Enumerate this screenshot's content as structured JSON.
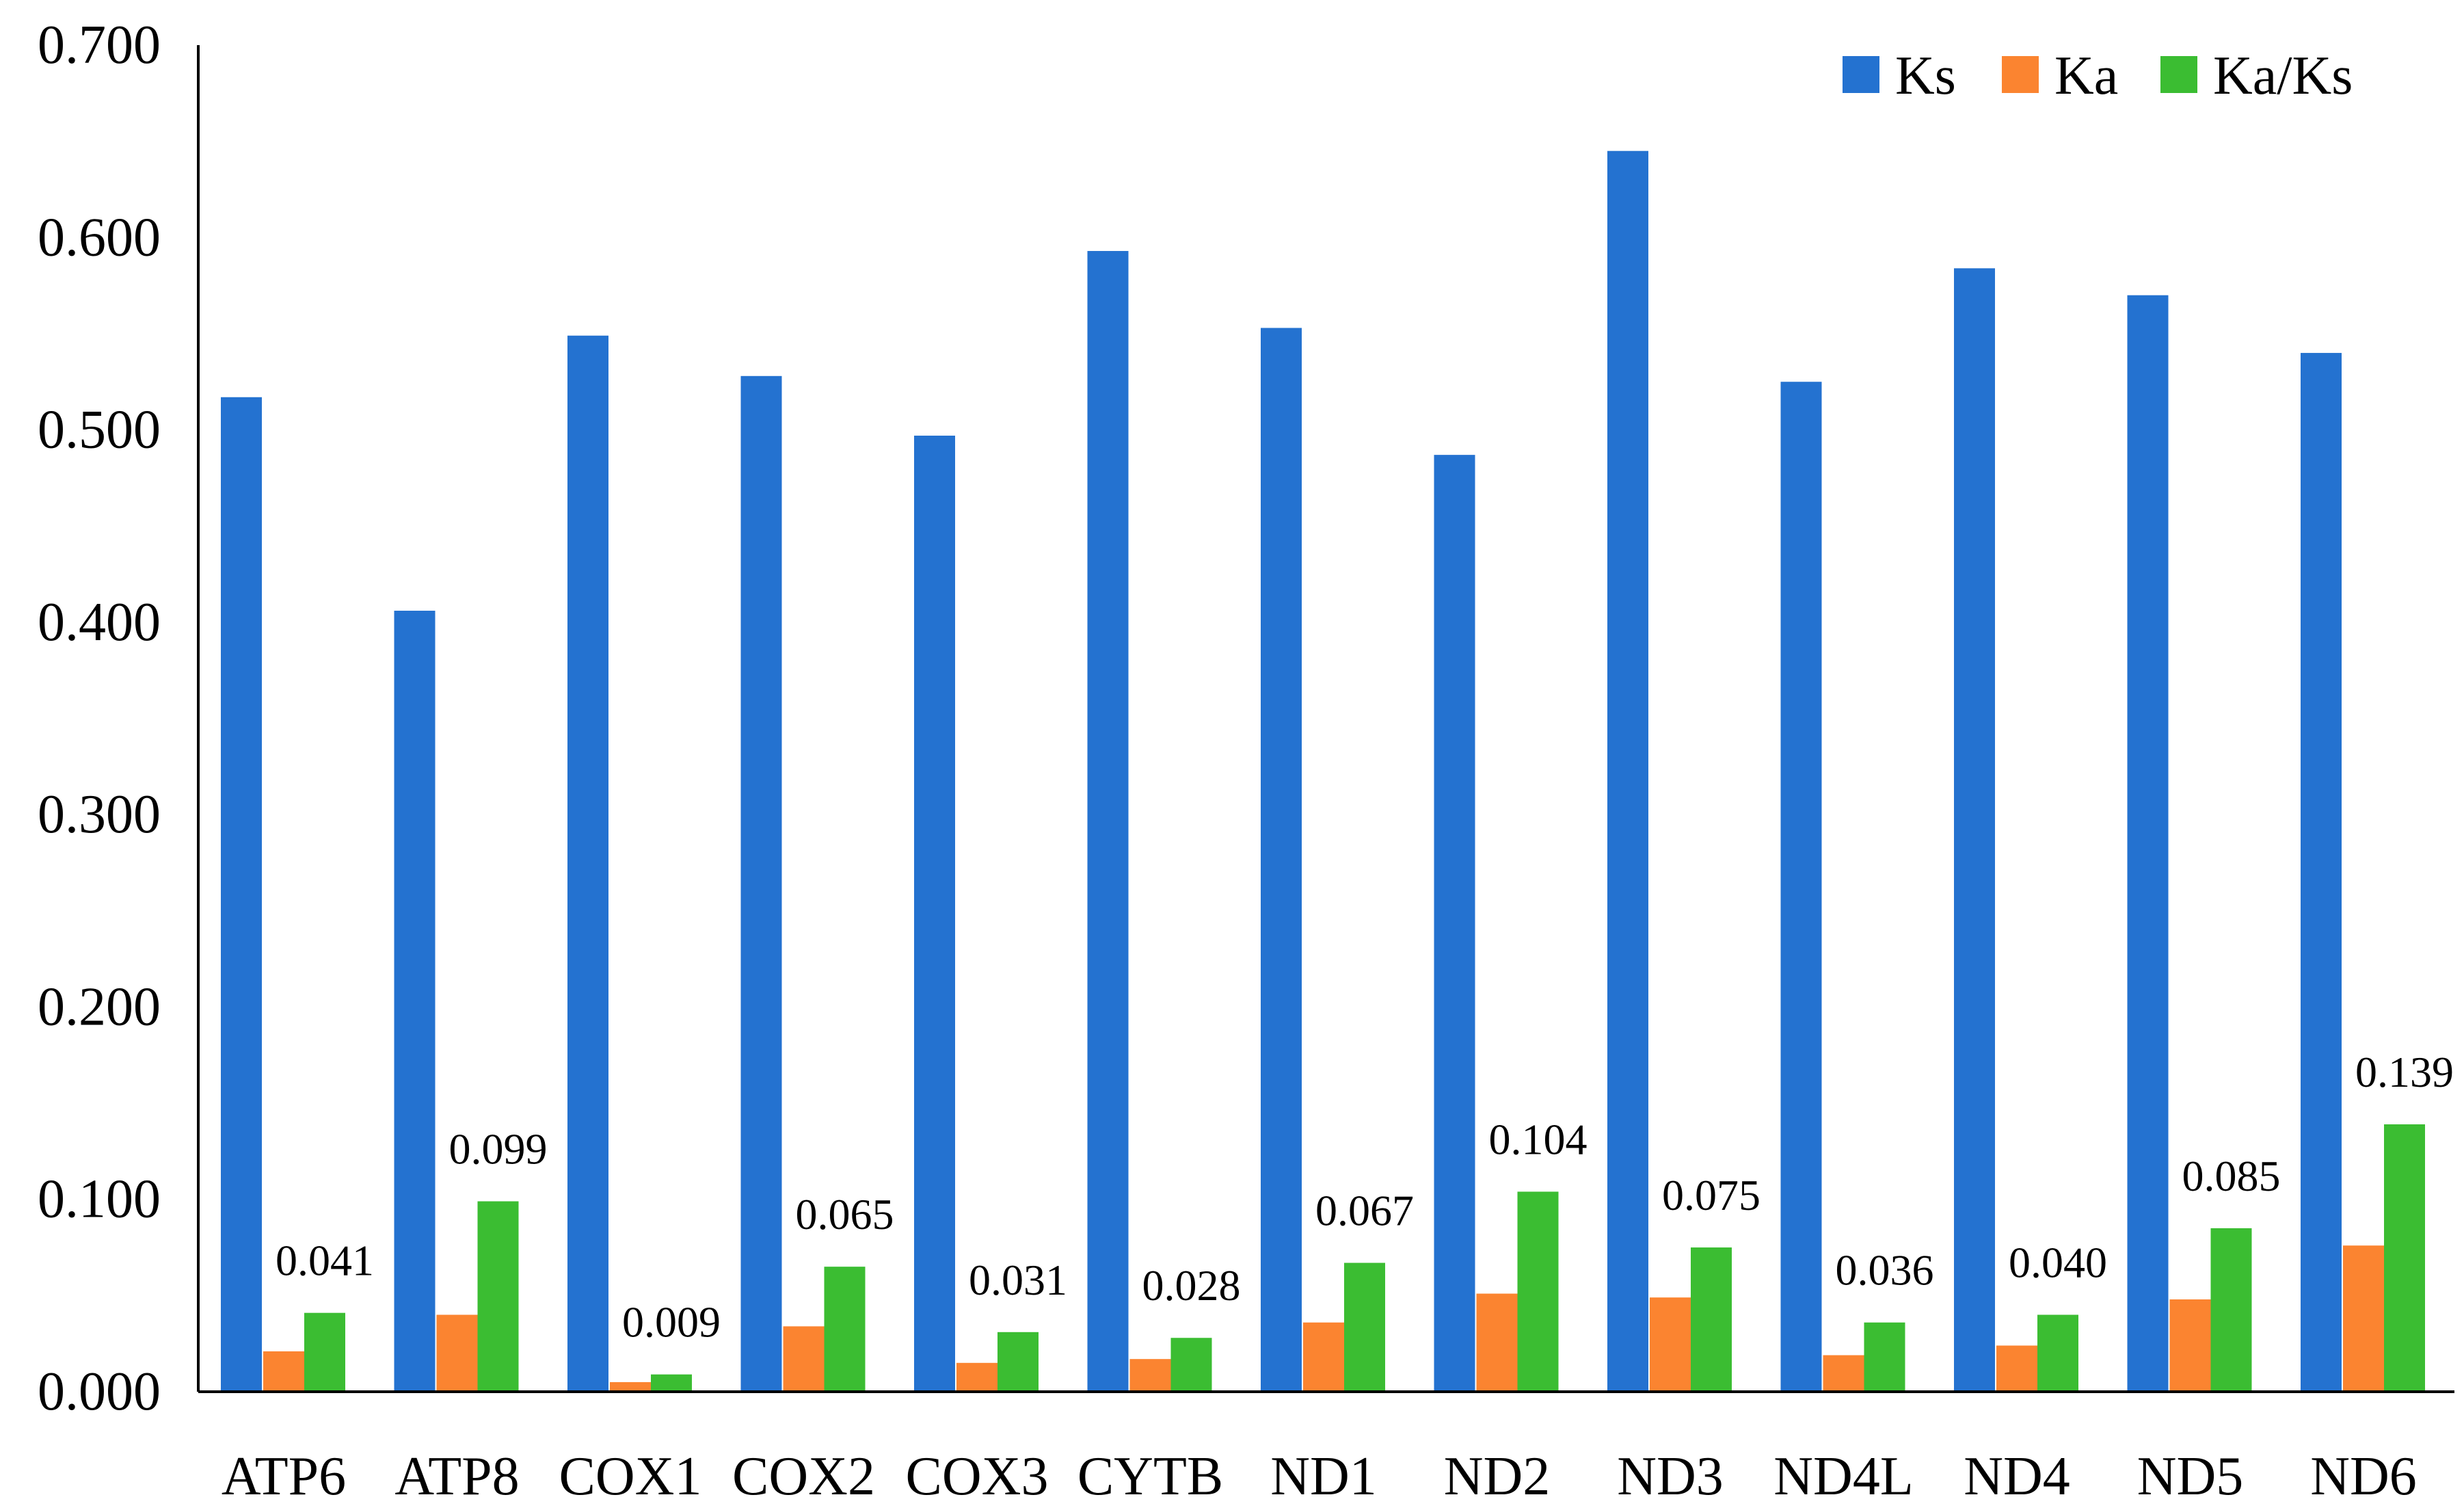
{
  "chart_data": {
    "type": "bar",
    "title": "",
    "xlabel": "",
    "ylabel": "",
    "ylim": [
      0,
      0.7
    ],
    "yticks": [
      "0.000",
      "0.100",
      "0.200",
      "0.300",
      "0.400",
      "0.500",
      "0.600",
      "0.700"
    ],
    "ytick_values": [
      0,
      0.1,
      0.2,
      0.3,
      0.4,
      0.5,
      0.6,
      0.7
    ],
    "grid": false,
    "legend_position": "top-right",
    "categories": [
      "ATP6",
      "ATP8",
      "COX1",
      "COX2",
      "COX3",
      "CYTB",
      "ND1",
      "ND2",
      "ND3",
      "ND4L",
      "ND4",
      "ND5",
      "ND6"
    ],
    "series": [
      {
        "name": "Ks",
        "color": "#2472d0",
        "values": [
          0.517,
          0.406,
          0.549,
          0.528,
          0.497,
          0.593,
          0.553,
          0.487,
          0.645,
          0.525,
          0.584,
          0.57,
          0.54
        ]
      },
      {
        "name": "Ka",
        "color": "#fb8430",
        "values": [
          0.021,
          0.04,
          0.005,
          0.034,
          0.015,
          0.017,
          0.036,
          0.051,
          0.049,
          0.019,
          0.024,
          0.048,
          0.076
        ]
      },
      {
        "name": "Ka/Ks",
        "color": "#3bbd32",
        "values": [
          0.041,
          0.099,
          0.009,
          0.065,
          0.031,
          0.028,
          0.067,
          0.104,
          0.075,
          0.036,
          0.04,
          0.085,
          0.139
        ],
        "labels": [
          "0.041",
          "0.099",
          "0.009",
          "0.065",
          "0.031",
          "0.028",
          "0.067",
          "0.104",
          "0.075",
          "0.036",
          "0.040",
          "0.085",
          "0.139"
        ]
      }
    ]
  }
}
